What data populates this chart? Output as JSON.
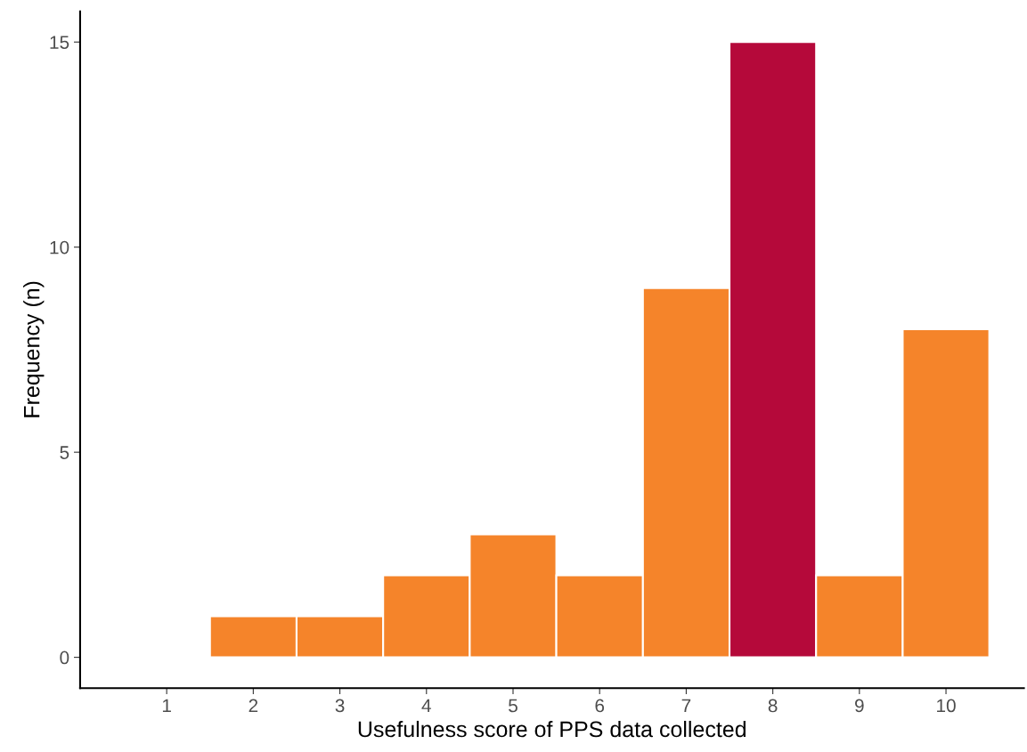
{
  "chart_data": {
    "type": "histogram",
    "xlabel": "Usefulness score of PPS data collected",
    "ylabel": "Frequency (n)",
    "bins": [
      0.5,
      1.5,
      2.5,
      3.5,
      4.5,
      5.5,
      6.5,
      7.5,
      8.5,
      9.5,
      10.5
    ],
    "values": [
      0,
      1,
      1,
      2,
      3,
      2,
      9,
      15,
      2,
      8
    ],
    "colors": [
      "#f5842a",
      "#f5842a",
      "#f5842a",
      "#f5842a",
      "#f5842a",
      "#f5842a",
      "#f5842a",
      "#b5093a",
      "#f5842a",
      "#f5842a"
    ],
    "xlim": [
      0,
      10.9
    ],
    "xticks": [
      1,
      2,
      3,
      4,
      5,
      6,
      7,
      8,
      9,
      10
    ],
    "ylim": [
      -0.75,
      15.75
    ],
    "yticks": [
      0,
      5,
      10,
      15
    ],
    "grid": false,
    "legend": false
  }
}
